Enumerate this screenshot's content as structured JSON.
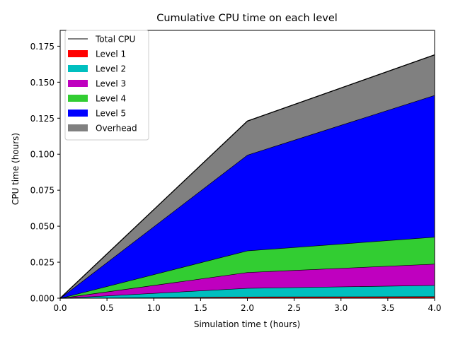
{
  "chart_data": {
    "type": "area",
    "title": "Cumulative CPU time on each level",
    "xlabel": "Simulation time t (hours)",
    "ylabel": "CPU time (hours)",
    "xlim": [
      0.0,
      4.0
    ],
    "ylim": [
      0.0,
      0.186
    ],
    "x": [
      0.0,
      2.0,
      4.0
    ],
    "xticks": [
      "0.0",
      "0.5",
      "1.0",
      "1.5",
      "2.0",
      "2.5",
      "3.0",
      "3.5",
      "4.0"
    ],
    "xtick_values": [
      0.0,
      0.5,
      1.0,
      1.5,
      2.0,
      2.5,
      3.0,
      3.5,
      4.0
    ],
    "yticks": [
      "0.000",
      "0.025",
      "0.050",
      "0.075",
      "0.100",
      "0.125",
      "0.150",
      "0.175"
    ],
    "ytick_values": [
      0.0,
      0.025,
      0.05,
      0.075,
      0.1,
      0.125,
      0.15,
      0.175
    ],
    "stacked": true,
    "series": [
      {
        "name": "Level 1",
        "values": [
          0.0,
          0.001,
          0.0012
        ],
        "color": "#ff0000"
      },
      {
        "name": "Level 2",
        "values": [
          0.0,
          0.006,
          0.0078
        ],
        "color": "#00bfbf"
      },
      {
        "name": "Level 3",
        "values": [
          0.0,
          0.011,
          0.0148
        ],
        "color": "#bf00bf"
      },
      {
        "name": "Level 4",
        "values": [
          0.0,
          0.015,
          0.0187
        ],
        "color": "#32cd32"
      },
      {
        "name": "Level 5",
        "values": [
          0.0,
          0.0665,
          0.0985
        ],
        "color": "#0000ff"
      },
      {
        "name": "Overhead",
        "values": [
          0.0,
          0.0235,
          0.028
        ],
        "color": "#808080"
      }
    ],
    "total_line": {
      "name": "Total CPU",
      "values": [
        0.0,
        0.123,
        0.169
      ],
      "color": "#000000"
    },
    "grid": false,
    "legend_position": "top-left"
  }
}
